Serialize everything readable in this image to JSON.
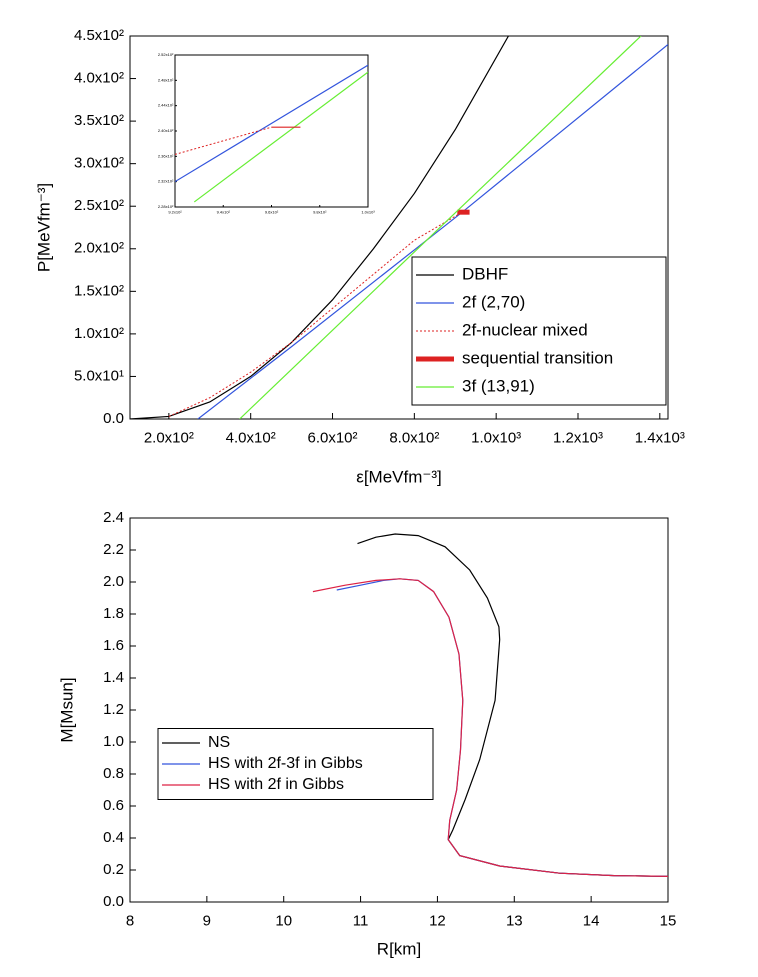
{
  "chart_data": [
    {
      "type": "line",
      "xlabel": "ε[MeVfm⁻³]",
      "ylabel": "P[MeVfm⁻³]",
      "xlim": [
        105,
        1420
      ],
      "xticks": [
        {
          "value": 200,
          "label": "2.0x10²"
        },
        {
          "value": 400,
          "label": "4.0x10²"
        },
        {
          "value": 600,
          "label": "6.0x10²"
        },
        {
          "value": 800,
          "label": "8.0x10²"
        },
        {
          "value": 1000,
          "label": "1.0x10³"
        },
        {
          "value": 1200,
          "label": "1.2x10³"
        },
        {
          "value": 1400,
          "label": "1.4x10³"
        }
      ],
      "ylim": [
        0,
        450
      ],
      "yticks": [
        {
          "value": 0,
          "label": "0.0"
        },
        {
          "value": 50,
          "label": "5.0x10¹"
        },
        {
          "value": 100,
          "label": "1.0x10²"
        },
        {
          "value": 150,
          "label": "1.5x10²"
        },
        {
          "value": 200,
          "label": "2.0x10²"
        },
        {
          "value": 250,
          "label": "2.5x10²"
        },
        {
          "value": 300,
          "label": "3.0x10²"
        },
        {
          "value": 350,
          "label": "3.5x10²"
        },
        {
          "value": 400,
          "label": "4.0x10²"
        },
        {
          "value": 450,
          "label": "4.5x10²"
        }
      ],
      "legend": "lower right",
      "series": [
        {
          "name": "DBHF",
          "color": "#000000",
          "style": "solid",
          "x": [
            105,
            200,
            300,
            400,
            500,
            600,
            700,
            800,
            900,
            1030
          ],
          "values": [
            0,
            3,
            20,
            50,
            90,
            140,
            200,
            265,
            340,
            450
          ]
        },
        {
          "name": "2f (2,70)",
          "color": "#3355dd",
          "style": "solid",
          "x": [
            271,
            500,
            917,
            1420
          ],
          "values": [
            0,
            85,
            243,
            440
          ]
        },
        {
          "name": "2f-nuclear mixed",
          "color": "#dd2222",
          "style": "dotted",
          "x": [
            200,
            300,
            400,
            500,
            600,
            700,
            800,
            917
          ],
          "values": [
            3,
            25,
            55,
            90,
            130,
            170,
            210,
            243
          ]
        },
        {
          "name": "sequential transition",
          "color": "#dd2222",
          "style": "thick",
          "x": [
            905,
            935
          ],
          "values": [
            243,
            243
          ]
        },
        {
          "name": "3f (13,91)",
          "color": "#66ee33",
          "style": "solid",
          "x": [
            373,
            917,
            1354
          ],
          "values": [
            0,
            250,
            450
          ]
        }
      ]
    },
    {
      "type": "line",
      "xlim": [
        920,
        1000
      ],
      "xticks": [
        {
          "value": 920,
          "label": "9.2x10²"
        },
        {
          "value": 940,
          "label": "9.4x10²"
        },
        {
          "value": 960,
          "label": "9.6x10²"
        },
        {
          "value": 980,
          "label": "9.8x10²"
        },
        {
          "value": 1000,
          "label": "1.0x10³"
        }
      ],
      "ylim": [
        228,
        252
      ],
      "yticks": [
        {
          "value": 228,
          "label": "2.28x10²"
        },
        {
          "value": 232,
          "label": "2.32x10²"
        },
        {
          "value": 236,
          "label": "2.36x10²"
        },
        {
          "value": 240,
          "label": "2.40x10²"
        },
        {
          "value": 244,
          "label": "2.44x10²"
        },
        {
          "value": 248,
          "label": "2.48x10²"
        },
        {
          "value": 252,
          "label": "2.52x10²"
        }
      ],
      "series": [
        {
          "color": "#3355dd",
          "style": "solid",
          "x": [
            920,
            1000
          ],
          "values": [
            232,
            250.4
          ]
        },
        {
          "color": "#66ee33",
          "style": "solid",
          "x": [
            928,
            1000
          ],
          "values": [
            228.8,
            249.3
          ]
        },
        {
          "color": "#dd2222",
          "style": "dotted",
          "x": [
            920,
            960
          ],
          "values": [
            236.3,
            240.6
          ]
        },
        {
          "color": "#dd2222",
          "style": "solid",
          "x": [
            960,
            972
          ],
          "values": [
            240.6,
            240.6
          ]
        }
      ]
    },
    {
      "type": "line",
      "xlabel": "R[km]",
      "ylabel": "M[Msun]",
      "xlim": [
        8,
        15
      ],
      "xticks": [
        8,
        9,
        10,
        11,
        12,
        13,
        14,
        15
      ],
      "ylim": [
        0,
        2.4
      ],
      "yticks": [
        {
          "value": 0,
          "label": "0.0"
        },
        0.2,
        0.4,
        0.6,
        0.8,
        {
          "value": 1,
          "label": "1.0"
        },
        1.2,
        1.4,
        1.6,
        1.8,
        {
          "value": 2,
          "label": "2.0"
        },
        2.2,
        2.4
      ],
      "legend": "center left",
      "series": [
        {
          "name": "NS",
          "color": "#000000",
          "style": "solid",
          "x": [
            10.96,
            11.2,
            11.45,
            11.75,
            12.1,
            12.42,
            12.65,
            12.8,
            12.81,
            12.75,
            12.55,
            12.36,
            12.2,
            12.14,
            12.29,
            12.81,
            13.59,
            14.3,
            15
          ],
          "values": [
            2.24,
            2.28,
            2.3,
            2.29,
            2.22,
            2.075,
            1.9,
            1.72,
            1.64,
            1.26,
            0.89,
            0.64,
            0.45,
            0.39,
            0.29,
            0.225,
            0.18,
            0.165,
            0.16
          ]
        },
        {
          "name": "HS with 2f-3f in Gibbs",
          "color": "#3355dd",
          "style": "solid",
          "x": [
            10.69,
            11.0,
            11.3,
            11.51,
            11.75,
            11.95,
            12.15,
            12.28,
            12.33,
            12.3,
            12.25,
            12.16,
            12.14,
            12.29,
            12.81,
            13.59,
            14.3,
            15
          ],
          "values": [
            1.95,
            1.98,
            2.01,
            2.02,
            2.01,
            1.94,
            1.78,
            1.55,
            1.26,
            0.95,
            0.7,
            0.51,
            0.39,
            0.29,
            0.225,
            0.18,
            0.165,
            0.16
          ]
        },
        {
          "name": "HS with 2f in Gibbs",
          "color": "#dd2244",
          "style": "solid",
          "x": [
            10.38,
            10.8,
            11.2,
            11.51,
            11.75,
            11.95,
            12.15,
            12.28,
            12.33,
            12.3,
            12.25,
            12.16,
            12.14,
            12.29,
            12.81,
            13.59,
            14.3,
            15
          ],
          "values": [
            1.94,
            1.98,
            2.01,
            2.02,
            2.01,
            1.94,
            1.78,
            1.55,
            1.26,
            0.95,
            0.7,
            0.51,
            0.39,
            0.29,
            0.225,
            0.18,
            0.165,
            0.16
          ]
        }
      ]
    }
  ]
}
